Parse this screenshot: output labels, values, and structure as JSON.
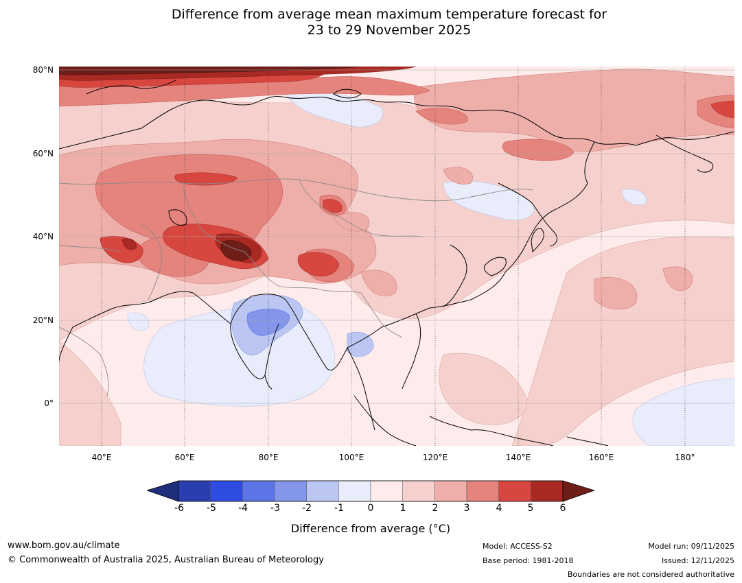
{
  "title": {
    "line1": "Difference from average mean maximum temperature forecast for",
    "line2": "23 to 29 November 2025"
  },
  "map": {
    "lat_labels": [
      "80°N",
      "60°N",
      "40°N",
      "20°N",
      "0°"
    ],
    "lon_labels": [
      "40°E",
      "60°E",
      "80°E",
      "100°E",
      "120°E",
      "140°E",
      "160°E",
      "180°"
    ],
    "extent": {
      "lon_min": 30,
      "lon_max": 191,
      "lat_min": -10,
      "lat_max": 80
    }
  },
  "colorbar": {
    "ticks": [
      "-6",
      "-5",
      "-4",
      "-3",
      "-2",
      "-1",
      "0",
      "1",
      "2",
      "3",
      "4",
      "5",
      "6"
    ],
    "colors": [
      "#1f2e7a",
      "#2a3eb0",
      "#2f4ce0",
      "#5b74e6",
      "#8396ea",
      "#bcc6f3",
      "#e8ecfb",
      "#fdeceb",
      "#f5d0cd",
      "#eeafab",
      "#e5837d",
      "#d7473f",
      "#a92a23",
      "#6f1d18"
    ],
    "label": "Difference from average (°C)"
  },
  "footer": {
    "website": "www.bom.gov.au/climate",
    "copyright": "© Commonwealth of Australia 2025, Australian Bureau of Meteorology",
    "model": "Model: ACCESS-S2",
    "base_period": "Base period: 1981-2018",
    "model_run": "Model run: 09/11/2025",
    "issued": "Issued: 12/11/2025",
    "disclaimer": "Boundaries are not considered authoritative"
  }
}
